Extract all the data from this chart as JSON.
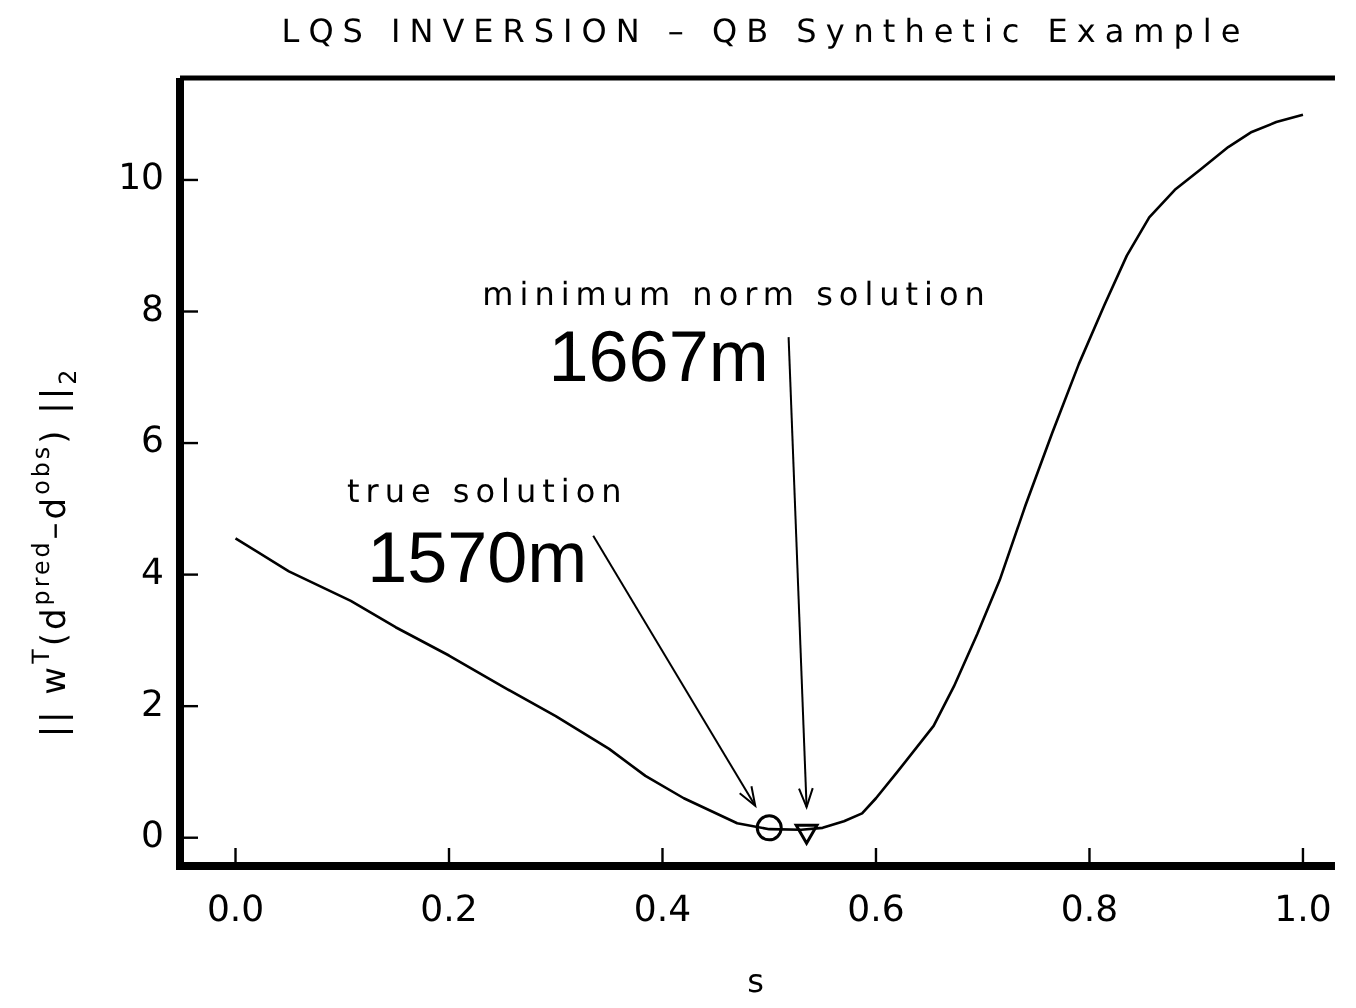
{
  "chart_data": {
    "type": "line",
    "title": "LQS INVERSION – QB Synthetic Example",
    "xlabel": "s",
    "ylabel": "|| w$^{T}$(d$^{pred}$–d$^{obs}$) ||$_{2}$",
    "xlim": [
      -0.052,
      1.03
    ],
    "ylim": [
      -0.43,
      11.55
    ],
    "xticks": [
      {
        "value": 0,
        "label": "0.0"
      },
      0.2,
      0.4,
      0.6,
      0.8,
      {
        "value": 1,
        "label": "1.0"
      }
    ],
    "yticks": [
      0,
      2,
      4,
      6,
      8,
      10
    ],
    "grid": false,
    "legend": false,
    "series": [
      {
        "color": "#000000",
        "marker": "none",
        "line_style": "solid",
        "x": [
          0,
          0.05,
          0.108,
          0.15,
          0.2,
          0.25,
          0.3,
          0.35,
          0.384,
          0.42,
          0.47,
          0.5,
          0.53,
          0.55,
          0.57,
          0.587,
          0.6,
          0.62,
          0.654,
          0.673,
          0.695,
          0.716,
          0.74,
          0.765,
          0.79,
          0.814,
          0.835,
          0.856,
          0.88,
          0.904,
          0.93,
          0.952,
          0.975,
          1.0
        ],
        "values": [
          4.55,
          4.05,
          3.6,
          3.2,
          2.77,
          2.3,
          1.85,
          1.35,
          0.94,
          0.6,
          0.22,
          0.13,
          0.12,
          0.15,
          0.25,
          0.37,
          0.6,
          1.0,
          1.7,
          2.3,
          3.1,
          3.92,
          5.05,
          6.15,
          7.2,
          8.1,
          8.85,
          9.43,
          9.85,
          10.16,
          10.5,
          10.73,
          10.88,
          10.99
        ]
      },
      {
        "type": "scatter",
        "color": "#000000",
        "marker": "circle",
        "x": [
          0.5
        ],
        "values": [
          0.15
        ]
      },
      {
        "type": "scatter",
        "color": "#000000",
        "marker": "triangle",
        "x": [
          0.535
        ],
        "values": [
          0.1
        ]
      }
    ],
    "annotations": [
      "true solution",
      "1570m",
      "minimum norm solution",
      "1667m"
    ]
  }
}
